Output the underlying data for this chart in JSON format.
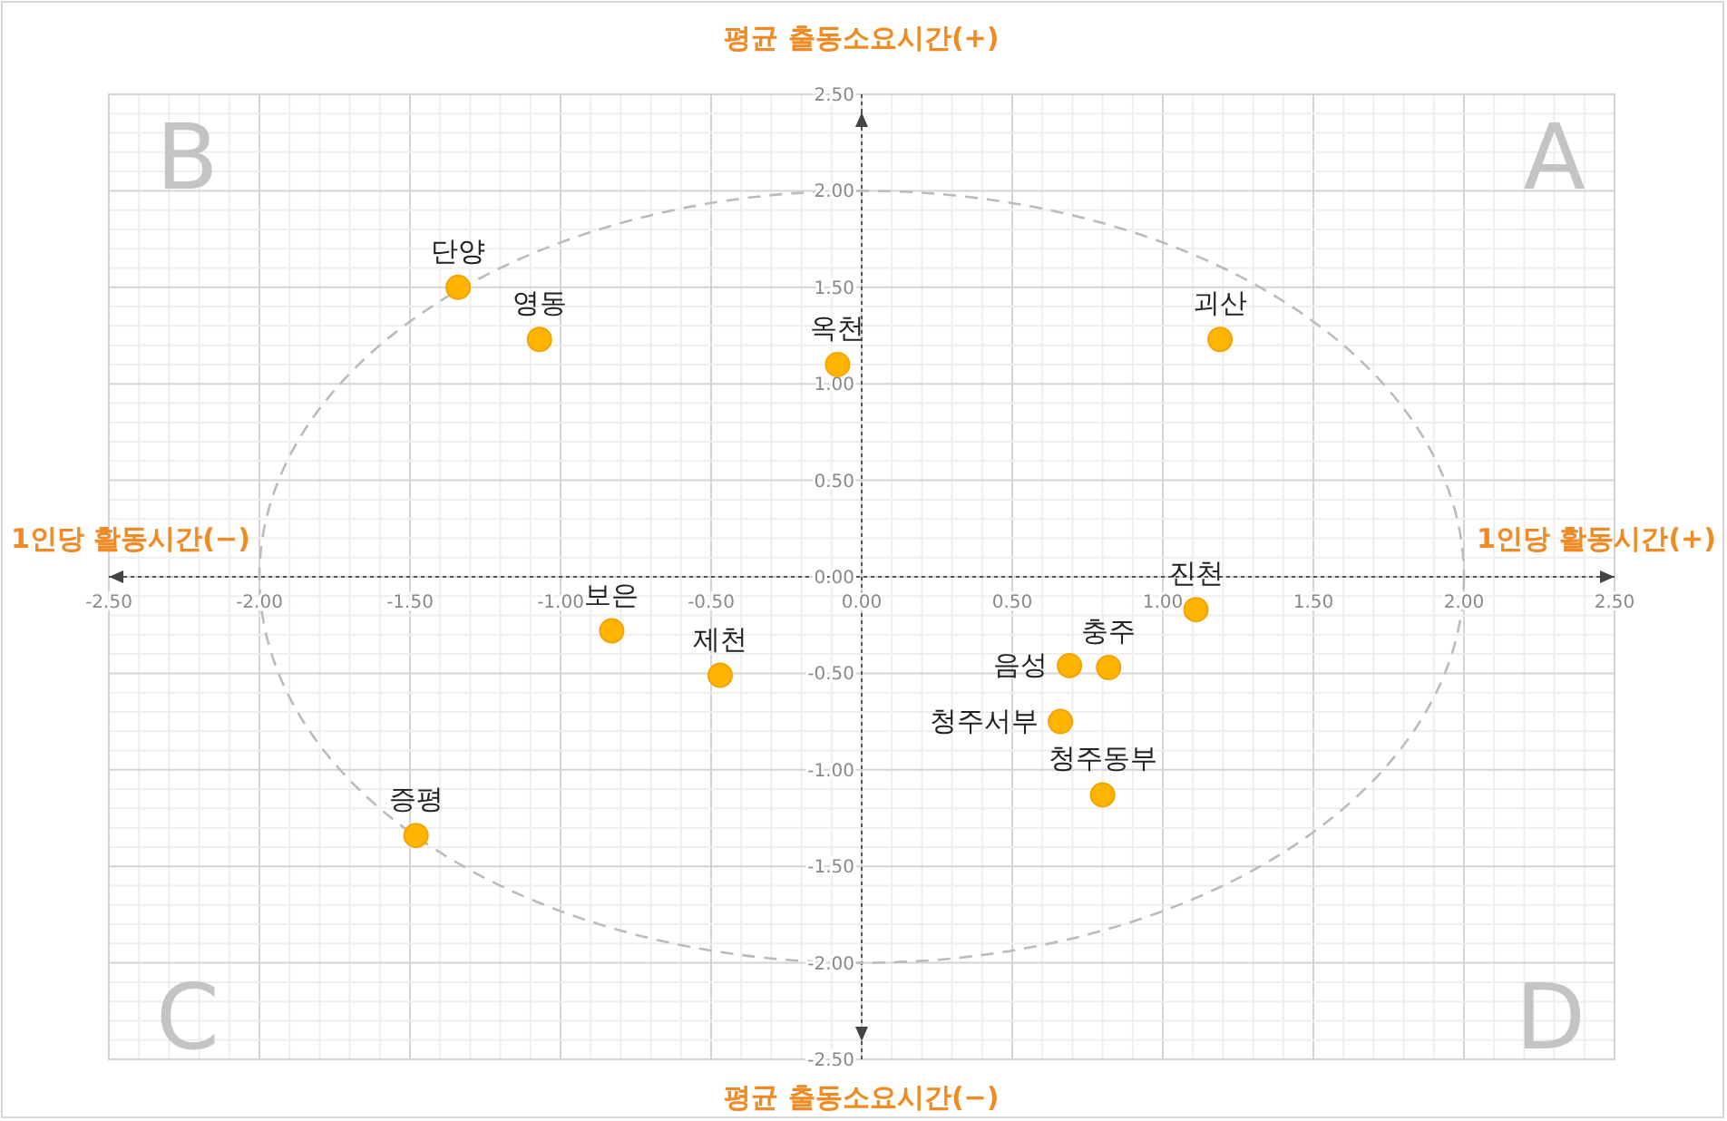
{
  "chart_data": {
    "type": "scatter",
    "xlabel": "1인당 활동시간(+)",
    "ylabel": "평균 출동소요시간(+)",
    "xlim": [
      -2.5,
      2.5
    ],
    "ylim": [
      -2.5,
      2.5
    ],
    "xticks": [
      {
        "value": -2.5,
        "label": "-2.50"
      },
      {
        "value": -2,
        "label": "-2.00"
      },
      {
        "value": -1.5,
        "label": "-1.50"
      },
      {
        "value": -1,
        "label": "-1.00"
      },
      {
        "value": -0.5,
        "label": "-0.50"
      },
      {
        "value": 0,
        "label": "0.00"
      },
      {
        "value": 0.5,
        "label": "0.50"
      },
      {
        "value": 1,
        "label": "1.00"
      },
      {
        "value": 1.5,
        "label": "1.50"
      },
      {
        "value": 2,
        "label": "2.00"
      },
      {
        "value": 2.5,
        "label": "2.50"
      }
    ],
    "yticks": [
      {
        "value": 2.5,
        "label": "2.50"
      },
      {
        "value": 2,
        "label": "2.00"
      },
      {
        "value": 1.5,
        "label": "1.50"
      },
      {
        "value": 1,
        "label": "1.00"
      },
      {
        "value": 0.5,
        "label": "0.50"
      },
      {
        "value": 0,
        "label": "0.00"
      },
      {
        "value": -0.5,
        "label": "-0.50"
      },
      {
        "value": -1,
        "label": "-1.00"
      },
      {
        "value": -1.5,
        "label": "-1.50"
      },
      {
        "value": -2,
        "label": "-2.00"
      },
      {
        "value": -2.5,
        "label": "-2.50"
      }
    ],
    "grid": true,
    "marker": "circle",
    "series": [
      {
        "type": "scatter",
        "color": "#ffb400",
        "x": [
          -1.34,
          -1.07,
          -0.08,
          1.19,
          1.11,
          -0.83,
          -0.47,
          0.82,
          0.69,
          0.66,
          0.8,
          -1.48
        ],
        "values": [
          1.5,
          1.23,
          1.1,
          1.23,
          -0.17,
          -0.28,
          -0.51,
          -0.47,
          -0.46,
          -0.75,
          -1.13,
          -1.34
        ]
      }
    ],
    "annotations": [
      {
        "text": "단양",
        "x": -1.34,
        "y": 1.5
      },
      {
        "text": "영동",
        "x": -1.07,
        "y": 1.23
      },
      {
        "text": "옥천",
        "x": -0.08,
        "y": 1.1
      },
      {
        "text": "괴산",
        "x": 1.19,
        "y": 1.23
      },
      {
        "text": "진천",
        "x": 1.11,
        "y": -0.17
      },
      {
        "text": "보은",
        "x": -0.83,
        "y": -0.28
      },
      {
        "text": "제천",
        "x": -0.47,
        "y": -0.51
      },
      {
        "text": "충주",
        "x": 0.82,
        "y": -0.47
      },
      {
        "text": "음성",
        "x": 0.69,
        "y": -0.46
      },
      {
        "text": "청주서부",
        "x": 0.66,
        "y": -0.75
      },
      {
        "text": "청주동부",
        "x": 0.8,
        "y": -1.13
      },
      {
        "text": "증평",
        "x": -1.48,
        "y": -1.34
      },
      "1인당 활동시간(−)",
      "평균 출동소요시간(−)",
      "A",
      "B",
      "C",
      "D"
    ]
  }
}
